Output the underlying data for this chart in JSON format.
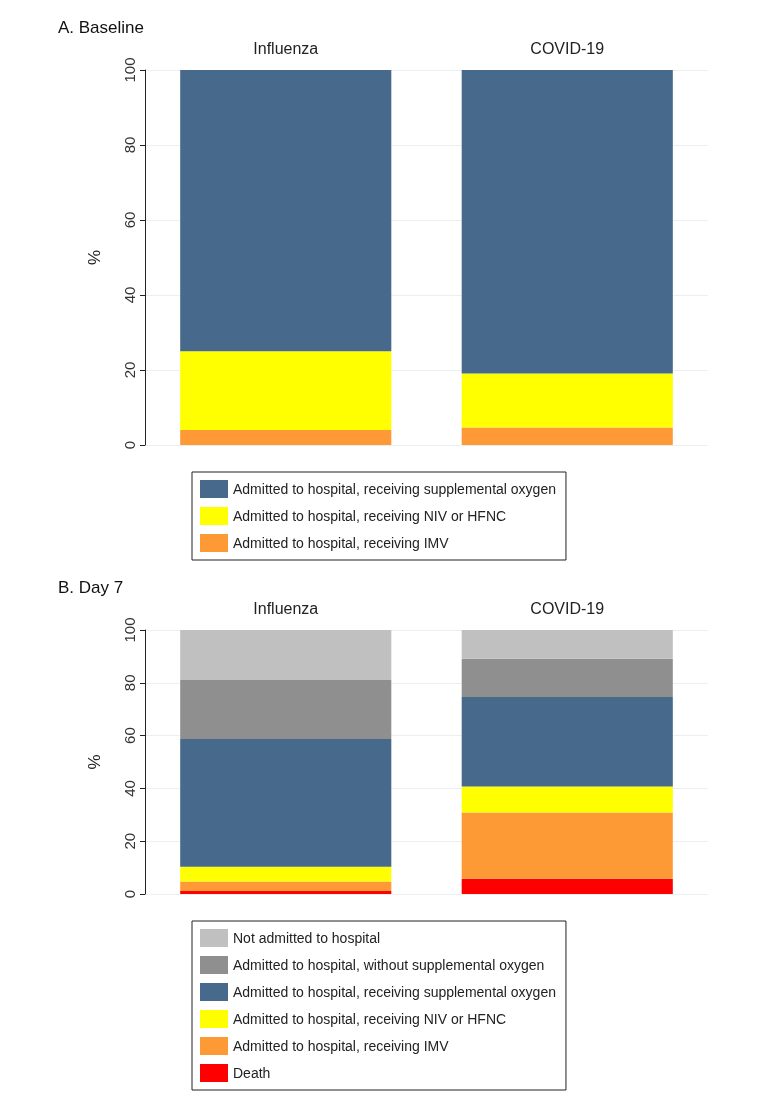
{
  "chart_data": [
    {
      "type": "bar",
      "title": "A. Baseline",
      "ylabel": "%",
      "categories": [
        "Influenza",
        "COVID-19"
      ],
      "stacked": true,
      "ylim": [
        0,
        100
      ],
      "yticks": [
        0,
        20,
        40,
        60,
        80,
        100
      ],
      "grid": "y",
      "legend": "bottom",
      "series": [
        {
          "name": "Admitted to hospital, receiving IMV",
          "color": "#fd9a35",
          "values": [
            4.0,
            4.7
          ]
        },
        {
          "name": "Admitted to hospital, receiving NIV or HFNC",
          "color": "#ffff00",
          "values": [
            21.0,
            14.4
          ]
        },
        {
          "name": "Admitted to hospital, receiving supplemental oxygen",
          "color": "#476a8c",
          "values": [
            75.0,
            80.9
          ]
        }
      ]
    },
    {
      "type": "bar",
      "title": "B. Day 7",
      "ylabel": "%",
      "categories": [
        "Influenza",
        "COVID-19"
      ],
      "stacked": true,
      "ylim": [
        0,
        100
      ],
      "yticks": [
        0,
        20,
        40,
        60,
        80,
        100
      ],
      "grid": "y",
      "legend": "bottom",
      "series": [
        {
          "name": "Death",
          "color": "#ff0000",
          "values": [
            1.1,
            5.8
          ]
        },
        {
          "name": "Admitted to hospital, receiving IMV",
          "color": "#fd9a35",
          "values": [
            3.6,
            25.1
          ]
        },
        {
          "name": "Admitted to hospital, receiving NIV or HFNC",
          "color": "#ffff00",
          "values": [
            5.6,
            9.8
          ]
        },
        {
          "name": "Admitted to hospital, receiving supplemental oxygen",
          "color": "#476a8c",
          "values": [
            48.4,
            33.9
          ]
        },
        {
          "name": "Admitted to hospital, without supplemental oxygen",
          "color": "#8f8f8f",
          "values": [
            22.4,
            14.5
          ]
        },
        {
          "name": "Not admitted to hospital",
          "color": "#c0c0c0",
          "values": [
            18.9,
            10.9
          ]
        }
      ]
    }
  ]
}
